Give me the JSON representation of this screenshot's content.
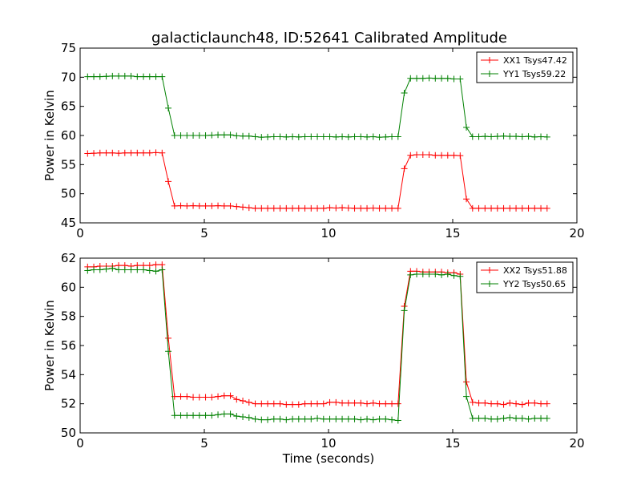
{
  "chart_data": [
    {
      "type": "line",
      "title": "galacticlaunch48, ID:52641 Calibrated Amplitude",
      "xlabel": "",
      "ylabel": "Power in Kelvin",
      "xlim": [
        0,
        20
      ],
      "ylim": [
        45,
        75
      ],
      "xticks": [
        "0",
        "5",
        "10",
        "15",
        "20"
      ],
      "yticks": [
        "45",
        "50",
        "55",
        "60",
        "65",
        "70",
        "75"
      ],
      "legend_position": "top-right",
      "grid": false,
      "x": [
        0.3,
        0.55,
        0.8,
        1.05,
        1.3,
        1.55,
        1.8,
        2.05,
        2.3,
        2.55,
        2.8,
        3.05,
        3.3,
        3.55,
        3.8,
        4.05,
        4.3,
        4.55,
        4.8,
        5.05,
        5.3,
        5.55,
        5.8,
        6.05,
        6.3,
        6.55,
        6.8,
        7.05,
        7.3,
        7.55,
        7.8,
        8.05,
        8.3,
        8.55,
        8.8,
        9.05,
        9.3,
        9.55,
        9.8,
        10.05,
        10.3,
        10.55,
        10.8,
        11.05,
        11.3,
        11.55,
        11.8,
        12.05,
        12.3,
        12.55,
        12.8,
        13.05,
        13.3,
        13.55,
        13.8,
        14.05,
        14.3,
        14.55,
        14.8,
        15.05,
        15.3,
        15.55,
        15.8,
        16.05,
        16.3,
        16.55,
        16.8,
        17.05,
        17.3,
        17.55,
        17.8,
        18.05,
        18.3,
        18.55,
        18.8
      ],
      "series": [
        {
          "name": "XX1 Tsys47.42",
          "color": "#ff0000",
          "values": [
            56.9,
            56.95,
            57.0,
            57.0,
            57.0,
            56.95,
            57.0,
            57.0,
            57.0,
            57.0,
            57.0,
            57.05,
            57.0,
            52.1,
            47.9,
            47.95,
            47.9,
            47.95,
            47.9,
            47.9,
            47.9,
            47.95,
            47.9,
            47.9,
            47.8,
            47.7,
            47.6,
            47.5,
            47.5,
            47.5,
            47.5,
            47.5,
            47.5,
            47.5,
            47.5,
            47.5,
            47.5,
            47.5,
            47.5,
            47.6,
            47.55,
            47.6,
            47.55,
            47.5,
            47.5,
            47.5,
            47.55,
            47.5,
            47.5,
            47.5,
            47.5,
            54.3,
            56.6,
            56.7,
            56.7,
            56.7,
            56.6,
            56.6,
            56.6,
            56.6,
            56.55,
            49.1,
            47.5,
            47.5,
            47.5,
            47.5,
            47.5,
            47.5,
            47.5,
            47.5,
            47.5,
            47.5,
            47.5,
            47.5,
            47.5
          ]
        },
        {
          "name": "YY1 Tsys59.22",
          "color": "#008000",
          "values": [
            70.1,
            70.1,
            70.1,
            70.15,
            70.2,
            70.2,
            70.2,
            70.2,
            70.1,
            70.1,
            70.1,
            70.1,
            70.1,
            64.7,
            60.0,
            60.0,
            60.0,
            60.0,
            60.0,
            60.0,
            60.05,
            60.1,
            60.1,
            60.1,
            59.95,
            59.9,
            59.9,
            59.8,
            59.7,
            59.75,
            59.8,
            59.8,
            59.75,
            59.8,
            59.75,
            59.8,
            59.8,
            59.8,
            59.8,
            59.8,
            59.75,
            59.8,
            59.75,
            59.8,
            59.8,
            59.75,
            59.8,
            59.7,
            59.75,
            59.8,
            59.8,
            67.3,
            69.8,
            69.8,
            69.8,
            69.85,
            69.8,
            69.8,
            69.8,
            69.7,
            69.7,
            61.4,
            59.8,
            59.8,
            59.85,
            59.8,
            59.85,
            59.9,
            59.85,
            59.85,
            59.8,
            59.85,
            59.75,
            59.8,
            59.75
          ]
        }
      ]
    },
    {
      "type": "line",
      "title": "",
      "xlabel": "Time (seconds)",
      "ylabel": "Power in Kelvin",
      "xlim": [
        0,
        20
      ],
      "ylim": [
        50,
        62
      ],
      "xticks": [
        "0",
        "5",
        "10",
        "15",
        "20"
      ],
      "yticks": [
        "50",
        "52",
        "54",
        "56",
        "58",
        "60",
        "62"
      ],
      "legend_position": "top-right",
      "grid": false,
      "x": [
        0.3,
        0.55,
        0.8,
        1.05,
        1.3,
        1.55,
        1.8,
        2.05,
        2.3,
        2.55,
        2.8,
        3.05,
        3.3,
        3.55,
        3.8,
        4.05,
        4.3,
        4.55,
        4.8,
        5.05,
        5.3,
        5.55,
        5.8,
        6.05,
        6.3,
        6.55,
        6.8,
        7.05,
        7.3,
        7.55,
        7.8,
        8.05,
        8.3,
        8.55,
        8.8,
        9.05,
        9.3,
        9.55,
        9.8,
        10.05,
        10.3,
        10.55,
        10.8,
        11.05,
        11.3,
        11.55,
        11.8,
        12.05,
        12.3,
        12.55,
        12.8,
        13.05,
        13.3,
        13.55,
        13.8,
        14.05,
        14.3,
        14.55,
        14.8,
        15.05,
        15.3,
        15.55,
        15.8,
        16.05,
        16.3,
        16.55,
        16.8,
        17.05,
        17.3,
        17.55,
        17.8,
        18.05,
        18.3,
        18.55,
        18.8
      ],
      "series": [
        {
          "name": "XX2 Tsys51.88",
          "color": "#ff0000",
          "values": [
            61.4,
            61.4,
            61.45,
            61.45,
            61.45,
            61.5,
            61.5,
            61.45,
            61.5,
            61.5,
            61.5,
            61.55,
            61.55,
            56.5,
            52.5,
            52.5,
            52.5,
            52.45,
            52.45,
            52.45,
            52.45,
            52.5,
            52.55,
            52.55,
            52.3,
            52.2,
            52.1,
            52.0,
            52.0,
            52.0,
            52.0,
            52.0,
            51.95,
            51.95,
            51.95,
            52.0,
            52.0,
            52.0,
            52.0,
            52.1,
            52.1,
            52.05,
            52.05,
            52.05,
            52.05,
            52.0,
            52.05,
            52.0,
            52.0,
            52.0,
            52.0,
            58.7,
            61.1,
            61.1,
            61.05,
            61.05,
            61.05,
            61.05,
            61.0,
            61.0,
            60.9,
            53.5,
            52.1,
            52.05,
            52.05,
            52.0,
            52.0,
            51.95,
            52.05,
            52.0,
            51.95,
            52.05,
            52.05,
            52.0,
            52.0
          ]
        },
        {
          "name": "YY2 Tsys50.65",
          "color": "#008000",
          "values": [
            61.15,
            61.2,
            61.2,
            61.25,
            61.3,
            61.2,
            61.2,
            61.2,
            61.2,
            61.2,
            61.15,
            61.1,
            61.2,
            55.6,
            51.2,
            51.2,
            51.2,
            51.2,
            51.2,
            51.2,
            51.2,
            51.25,
            51.3,
            51.3,
            51.15,
            51.1,
            51.05,
            50.95,
            50.9,
            50.9,
            50.95,
            50.95,
            50.9,
            50.95,
            50.95,
            50.95,
            50.95,
            51.0,
            50.95,
            50.95,
            50.95,
            50.95,
            50.95,
            50.95,
            50.9,
            50.95,
            50.9,
            50.95,
            50.95,
            50.9,
            50.85,
            58.4,
            60.85,
            60.9,
            60.9,
            60.9,
            60.9,
            60.85,
            60.9,
            60.8,
            60.75,
            52.5,
            51.0,
            51.0,
            51.0,
            50.95,
            50.95,
            51.0,
            51.05,
            51.0,
            51.0,
            50.95,
            51.0,
            51.0,
            51.0
          ]
        }
      ]
    }
  ]
}
